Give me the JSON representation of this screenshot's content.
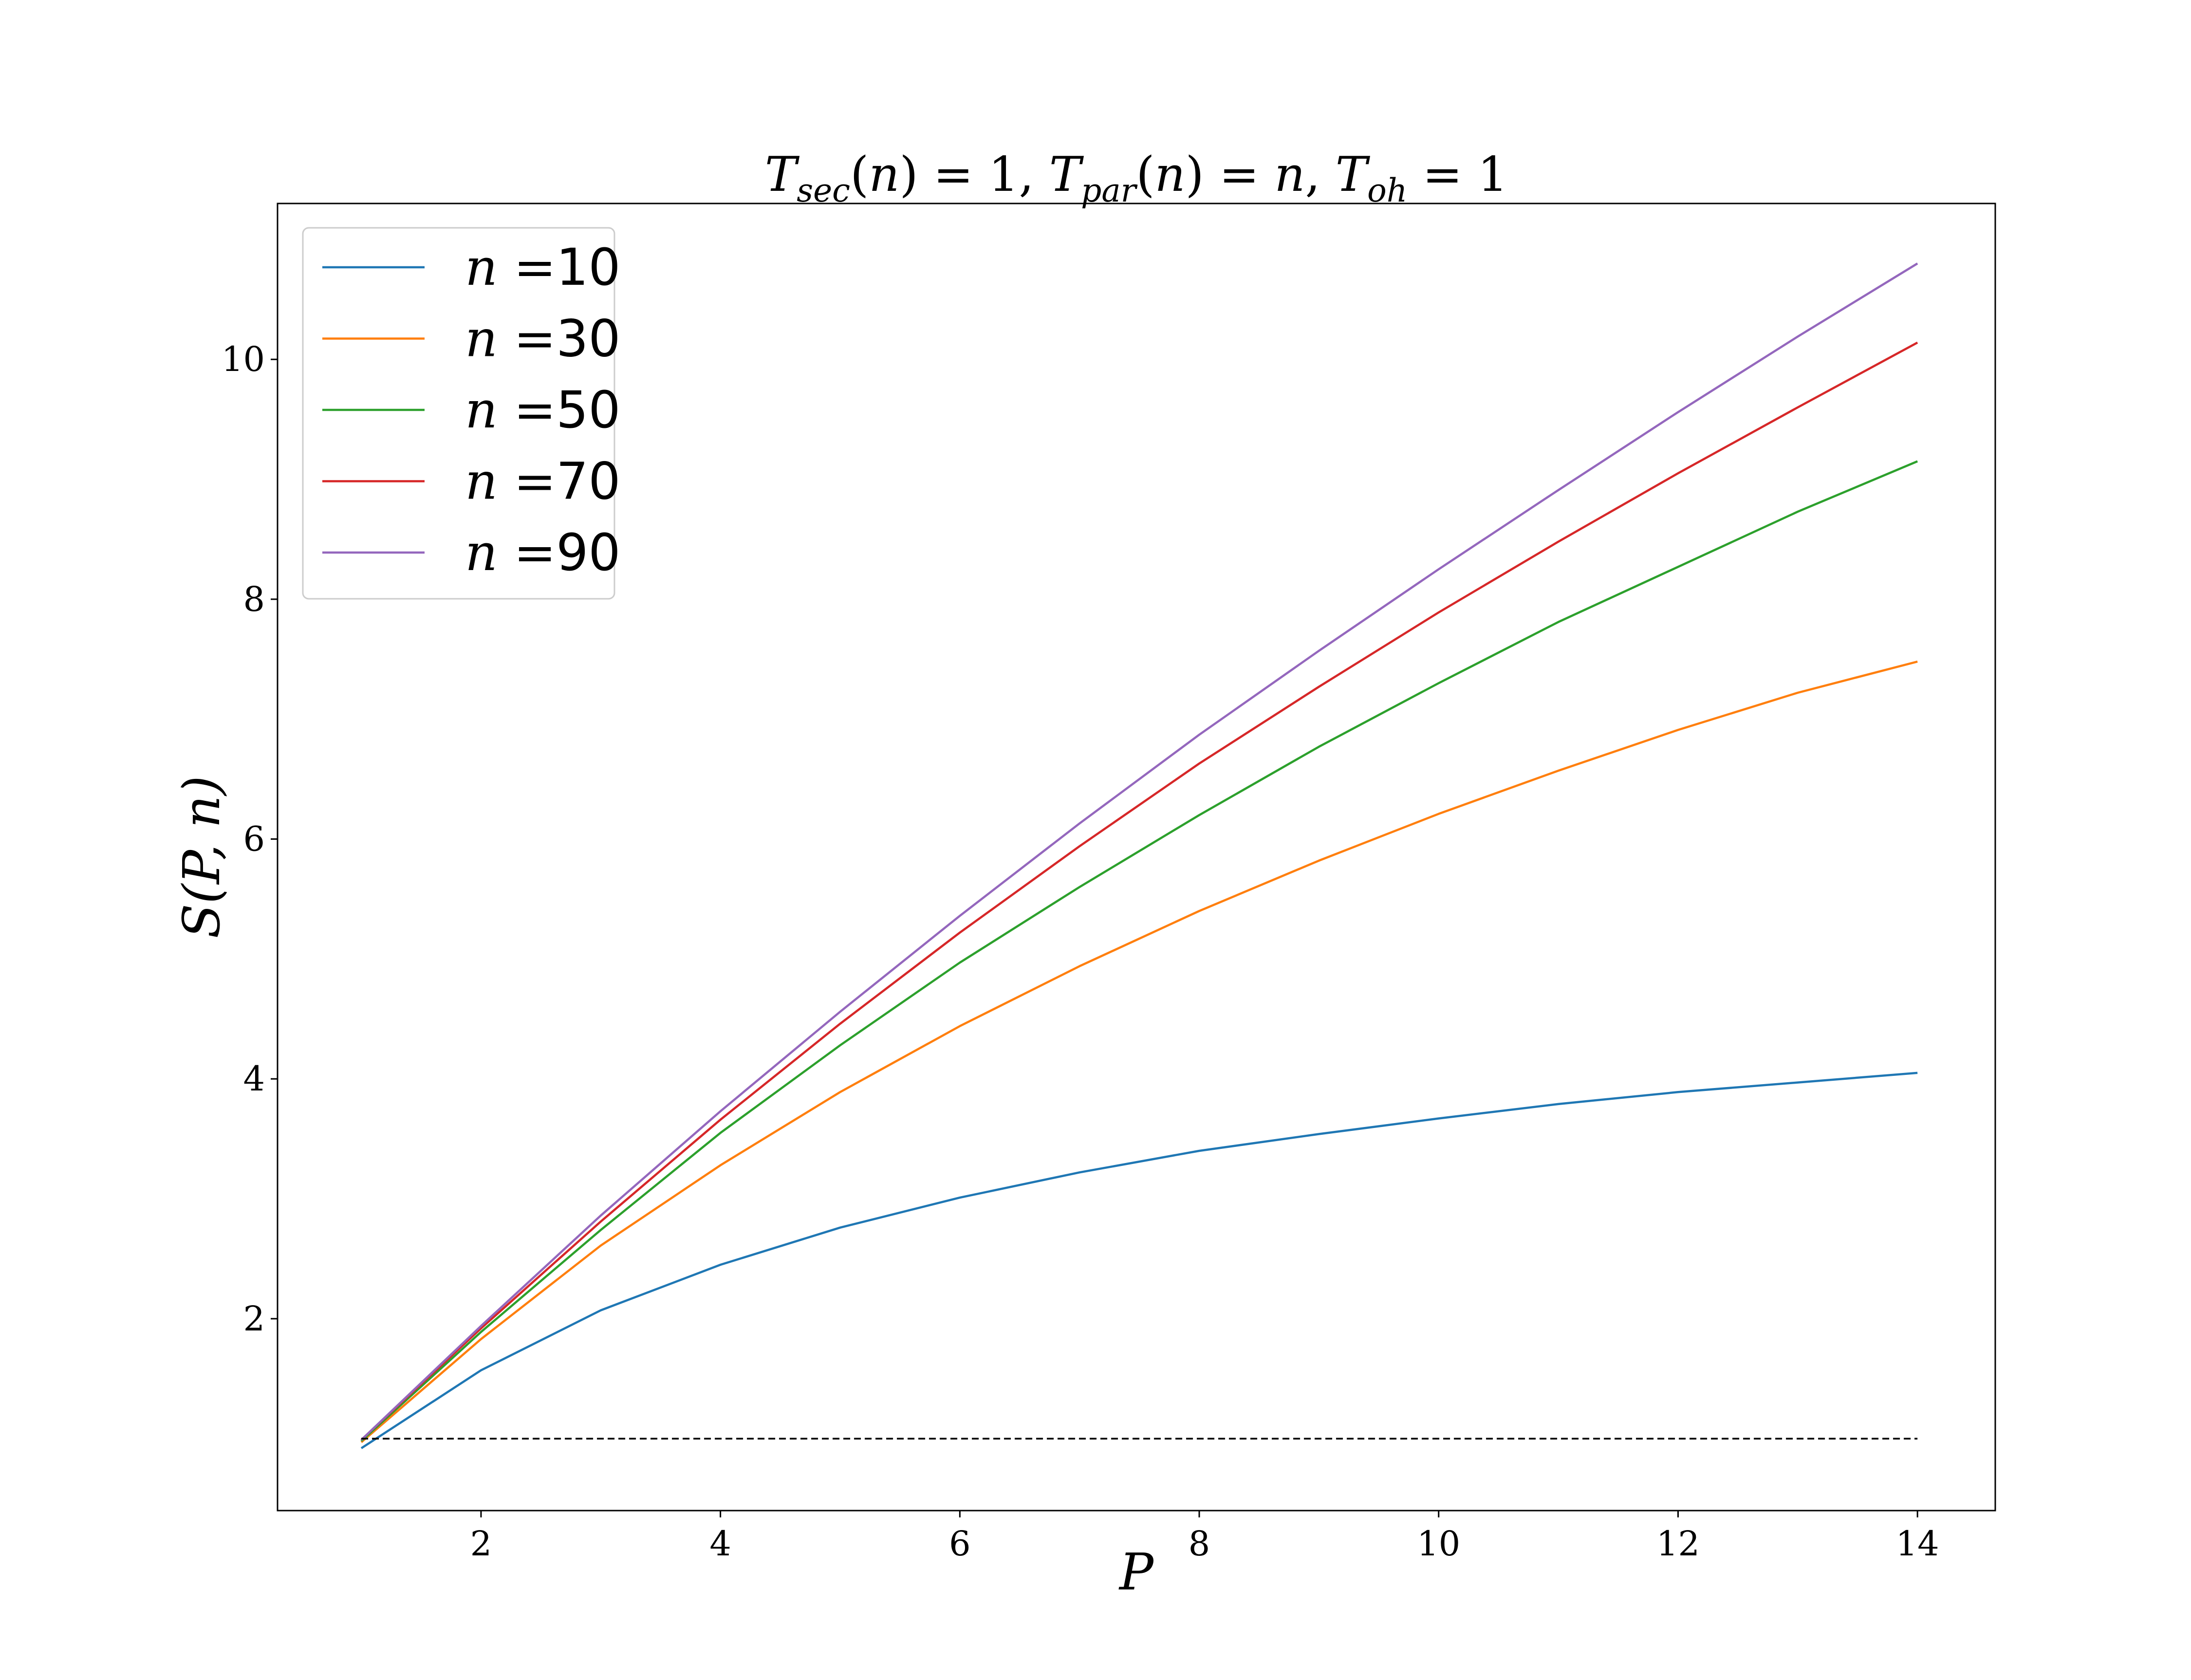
{
  "chart_data": {
    "type": "line",
    "title": {
      "parts": [
        {
          "t": "T",
          "italic": true
        },
        {
          "t": "sec",
          "italic": true,
          "sub": true
        },
        {
          "t": "(",
          "italic": false
        },
        {
          "t": "n",
          "italic": true
        },
        {
          "t": ") = 1, ",
          "italic": false
        },
        {
          "t": "T",
          "italic": true
        },
        {
          "t": "par",
          "italic": true,
          "sub": true
        },
        {
          "t": "(",
          "italic": false
        },
        {
          "t": "n",
          "italic": true
        },
        {
          "t": ") = ",
          "italic": false
        },
        {
          "t": "n",
          "italic": true
        },
        {
          "t": ", ",
          "italic": false
        },
        {
          "t": "T",
          "italic": true
        },
        {
          "t": "oh",
          "italic": true,
          "sub": true
        },
        {
          "t": " = 1",
          "italic": false
        }
      ]
    },
    "xlabel": "P",
    "ylabel": "S(P, n)",
    "xlim": [
      0.3,
      14.65
    ],
    "ylim": [
      0.4,
      11.3
    ],
    "xticks": [
      2,
      4,
      6,
      8,
      10,
      12,
      14
    ],
    "yticks": [
      2,
      4,
      6,
      8,
      10
    ],
    "grid": false,
    "legend_position": "top-left",
    "x": [
      1,
      2,
      3,
      4,
      5,
      6,
      7,
      8,
      9,
      10,
      11,
      12,
      13,
      14
    ],
    "series": [
      {
        "name": "n =10",
        "legend_var": "n",
        "legend_eq": " =",
        "legend_value": "10",
        "color": "#1f77b4",
        "values": [
          0.92,
          1.57,
          2.07,
          2.45,
          2.76,
          3.01,
          3.22,
          3.4,
          3.54,
          3.67,
          3.79,
          3.89,
          3.97,
          4.05
        ]
      },
      {
        "name": "n =30",
        "legend_var": "n",
        "legend_eq": " =",
        "legend_value": "30",
        "color": "#ff7f0e",
        "values": [
          0.97,
          1.83,
          2.61,
          3.28,
          3.89,
          4.44,
          4.94,
          5.4,
          5.82,
          6.21,
          6.57,
          6.91,
          7.22,
          7.48
        ]
      },
      {
        "name": "n =50",
        "legend_var": "n",
        "legend_eq": " =",
        "legend_value": "50",
        "color": "#2ca02c",
        "values": [
          0.98,
          1.89,
          2.74,
          3.55,
          4.28,
          4.97,
          5.6,
          6.2,
          6.77,
          7.3,
          7.81,
          8.27,
          8.73,
          9.15
        ]
      },
      {
        "name": "n =70",
        "legend_var": "n",
        "legend_eq": " =",
        "legend_value": "70",
        "color": "#d62728",
        "values": [
          0.99,
          1.92,
          2.81,
          3.66,
          4.46,
          5.22,
          5.94,
          6.63,
          7.27,
          7.89,
          8.48,
          9.05,
          9.6,
          10.14
        ]
      },
      {
        "name": "n =90",
        "legend_var": "n",
        "legend_eq": " =",
        "legend_value": "90",
        "color": "#9467bd",
        "values": [
          0.99,
          1.94,
          2.86,
          3.73,
          4.56,
          5.36,
          6.13,
          6.87,
          7.57,
          8.25,
          8.91,
          9.56,
          10.19,
          10.8
        ]
      }
    ],
    "reference_line": {
      "y": 1.0,
      "x_start": 1,
      "x_end": 14,
      "style": "dashed",
      "color": "#000000"
    }
  }
}
